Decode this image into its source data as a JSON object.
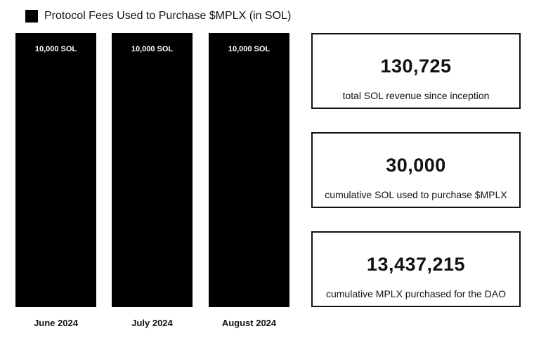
{
  "chart_data": {
    "type": "bar",
    "title": "",
    "legend": [
      "Protocol Fees Used to Purchase $MPLX (in SOL)"
    ],
    "legend_placement": "top-left",
    "categories": [
      "June 2024",
      "July 2024",
      "August 2024"
    ],
    "values": [
      10000,
      10000,
      10000
    ],
    "data_labels": [
      "10,000 SOL",
      "10,000 SOL",
      "10,000 SOL"
    ],
    "xlabel": "",
    "ylabel": "",
    "ylim": [
      0,
      10000
    ],
    "grid": false
  },
  "stats": [
    {
      "value": "130,725",
      "caption": "total SOL revenue since inception"
    },
    {
      "value": "30,000",
      "caption": "cumulative SOL used to purchase $MPLX"
    },
    {
      "value": "13,437,215",
      "caption": "cumulative MPLX purchased for the DAO"
    }
  ]
}
